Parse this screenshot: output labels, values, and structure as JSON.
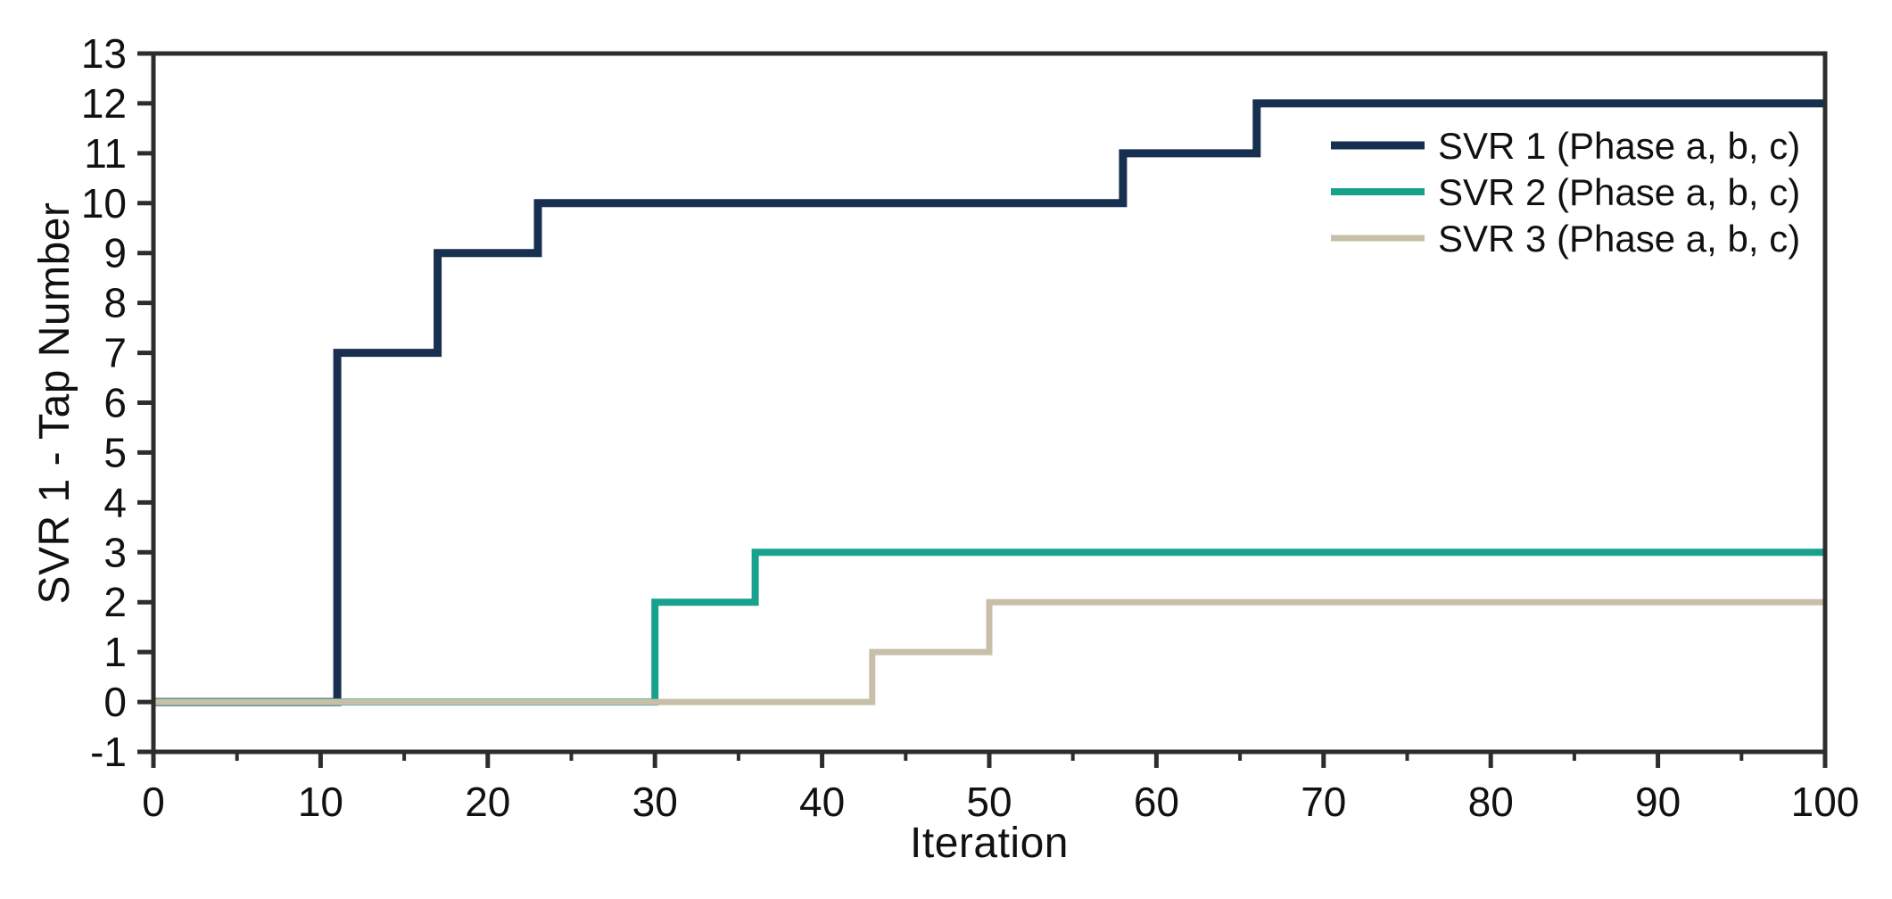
{
  "figure": {
    "background": "#ffffff",
    "axis_color": "#2d2d2d",
    "text_color": "#111111"
  },
  "chart_data": {
    "type": "line",
    "subtype": "step-after",
    "title": "",
    "xlabel": "Iteration",
    "ylabel": "SVR 1 - Tap Number",
    "xlim": [
      0,
      100
    ],
    "ylim": [
      -1,
      13
    ],
    "grid": false,
    "legend_position": "top-right-inside",
    "x_major_ticks": [
      0,
      10,
      20,
      30,
      40,
      50,
      60,
      70,
      80,
      90,
      100
    ],
    "x_minor_ticks": [
      5,
      15,
      25,
      35,
      45,
      55,
      65,
      75,
      85,
      95
    ],
    "y_major_ticks": [
      -1,
      0,
      1,
      2,
      3,
      4,
      5,
      6,
      7,
      8,
      9,
      10,
      11,
      12,
      13
    ],
    "series": [
      {
        "name": "SVR 1 (Phase a, b, c)",
        "color": "#17304f",
        "line_width": 9,
        "points": [
          [
            0,
            0
          ],
          [
            11,
            7
          ],
          [
            17,
            9
          ],
          [
            23,
            10
          ],
          [
            58,
            11
          ],
          [
            66,
            12
          ],
          [
            100,
            12
          ]
        ]
      },
      {
        "name": "SVR 2 (Phase a, b, c)",
        "color": "#18a28d",
        "line_width": 8,
        "points": [
          [
            0,
            0
          ],
          [
            30,
            2
          ],
          [
            36,
            3
          ],
          [
            100,
            3
          ]
        ]
      },
      {
        "name": "SVR 3 (Phase a, b, c)",
        "color": "#c8bfa9",
        "line_width": 7,
        "points": [
          [
            0,
            0
          ],
          [
            43,
            1
          ],
          [
            50,
            2
          ],
          [
            100,
            2
          ]
        ]
      }
    ]
  },
  "legend": {
    "items": [
      {
        "label": "SVR 1 (Phase a, b, c)",
        "color": "#17304f",
        "line_width": 9
      },
      {
        "label": "SVR 2 (Phase a, b, c)",
        "color": "#18a28d",
        "line_width": 8
      },
      {
        "label": "SVR 3 (Phase a, b, c)",
        "color": "#c8bfa9",
        "line_width": 7
      }
    ]
  }
}
